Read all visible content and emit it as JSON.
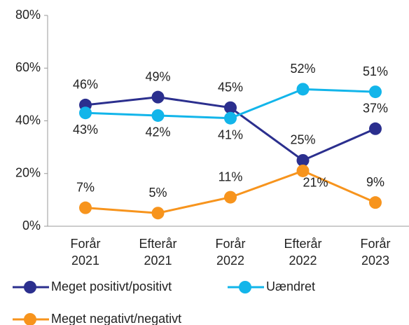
{
  "chart_data": {
    "type": "line",
    "categories": [
      "Forår 2021",
      "Efterår 2021",
      "Forår 2022",
      "Efterår 2022",
      "Forår 2023"
    ],
    "series": [
      {
        "name": "Meget positivt/positivt",
        "color": "#2b2f8e",
        "values": [
          46,
          49,
          45,
          25,
          37
        ],
        "value_labels": [
          "46%",
          "49%",
          "45%",
          "25%",
          "37%"
        ]
      },
      {
        "name": "Uændret",
        "color": "#12b5ea",
        "values": [
          43,
          42,
          41,
          52,
          51
        ],
        "value_labels": [
          "43%",
          "42%",
          "41%",
          "52%",
          "51%"
        ]
      },
      {
        "name": "Meget negativt/negativt",
        "color": "#f7941d",
        "values": [
          7,
          5,
          11,
          21,
          9
        ],
        "value_labels": [
          "7%",
          "5%",
          "11%",
          "21%",
          "9%"
        ]
      }
    ],
    "ylim": [
      0,
      80
    ],
    "yticks": [
      {
        "value": 0,
        "label": "0%"
      },
      {
        "value": 20,
        "label": "20%"
      },
      {
        "value": 40,
        "label": "40%"
      },
      {
        "value": 60,
        "label": "60%"
      },
      {
        "value": 80,
        "label": "80%"
      }
    ]
  }
}
